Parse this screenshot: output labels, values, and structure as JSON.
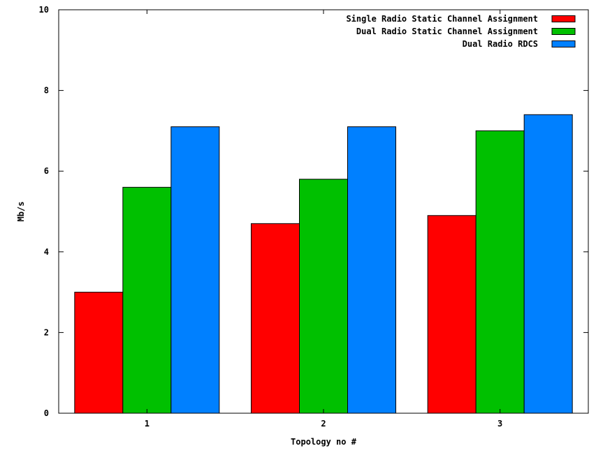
{
  "chart_data": {
    "type": "bar",
    "title": "",
    "xlabel": "Topology no #",
    "ylabel": "Mb/s",
    "ylim": [
      0,
      10
    ],
    "yticks": [
      0,
      2,
      4,
      6,
      8,
      10
    ],
    "categories": [
      "1",
      "2",
      "3"
    ],
    "grid": false,
    "legend_position": "top-right",
    "series": [
      {
        "name": "Single Radio Static Channel Assignment",
        "color": "#ff0000",
        "values": [
          3.0,
          4.7,
          4.9
        ]
      },
      {
        "name": "Dual Radio Static Channel Assignment",
        "color": "#00c000",
        "values": [
          5.6,
          5.8,
          7.0
        ]
      },
      {
        "name": "Dual Radio RDCS",
        "color": "#0080ff",
        "values": [
          7.1,
          7.1,
          7.4
        ]
      }
    ]
  }
}
